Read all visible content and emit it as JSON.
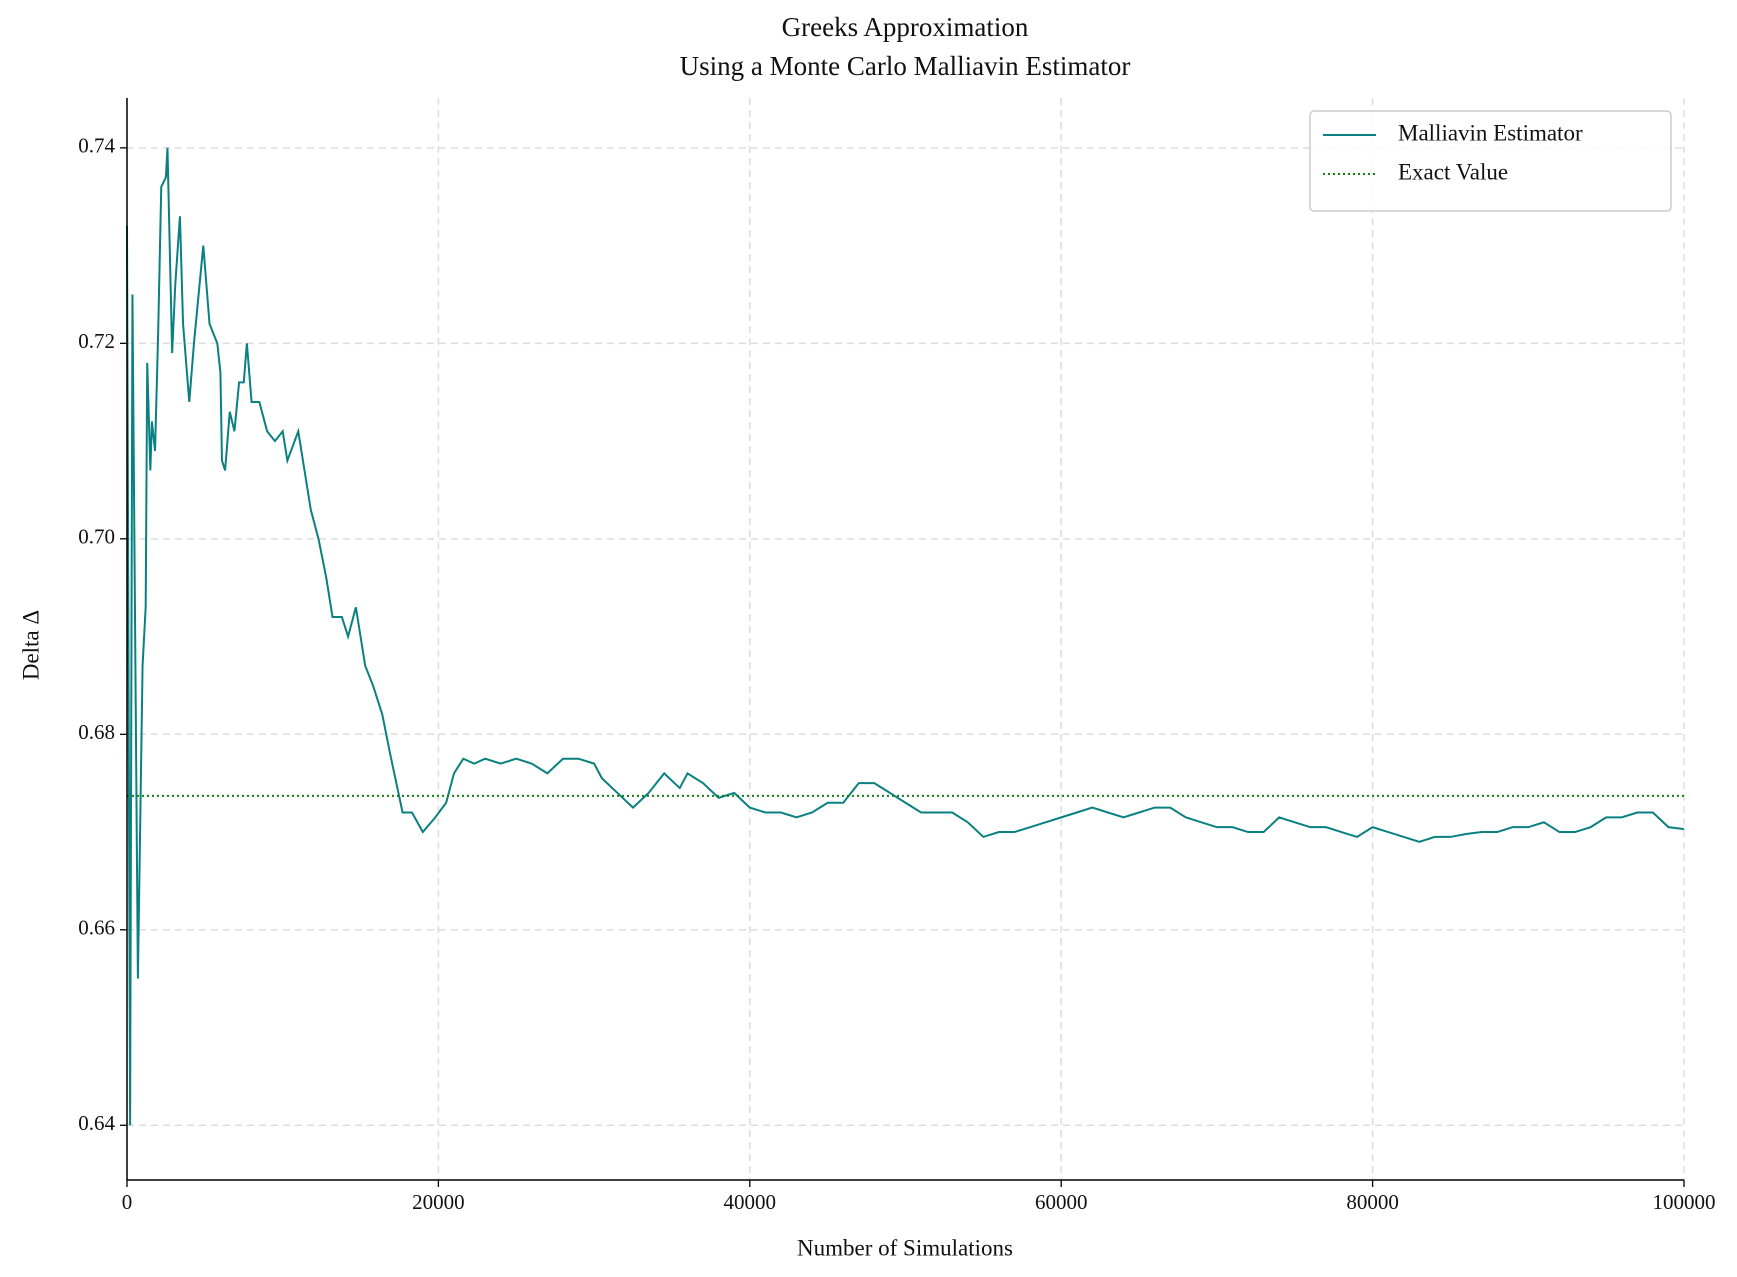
{
  "chart_data": {
    "type": "line",
    "title": [
      "Greeks Approximation",
      "Using a Monte Carlo Malliavin Estimator"
    ],
    "x_label": "Number of Simulations",
    "y_label": "Delta Δ",
    "xlim": [
      0,
      100000
    ],
    "ylim": [
      0.6344,
      0.7451
    ],
    "xticks": [
      0,
      20000,
      40000,
      60000,
      80000,
      100000
    ],
    "yticks": [
      0.64,
      0.66,
      0.68,
      {
        "value": 0.7,
        "label": "0.70"
      },
      0.72,
      0.74
    ],
    "grid": true,
    "legend": "upper right",
    "series": [
      {
        "name": "Malliavin Estimator",
        "color": "#0a8080",
        "x": [
          0,
          200,
          350,
          700,
          1000,
          1200,
          1300,
          1500,
          1600,
          1800,
          2000,
          2200,
          2500,
          2600,
          2900,
          3100,
          3400,
          3600,
          4000,
          4300,
          4900,
          5100,
          5300,
          5800,
          6000,
          6100,
          6300,
          6600,
          6900,
          7200,
          7500,
          7700,
          8000,
          8500,
          9000,
          9500,
          10000,
          10300,
          11000,
          11300,
          11800,
          12300,
          12800,
          13200,
          13800,
          14200,
          14700,
          15300,
          15800,
          16400,
          16900,
          17300,
          17700,
          18300,
          19000,
          19800,
          20500,
          21000,
          21600,
          22300,
          23000,
          24000,
          25000,
          26000,
          27000,
          28000,
          29000,
          30000,
          30500,
          31500,
          32500,
          33500,
          34500,
          35500,
          36000,
          37000,
          38000,
          39000,
          40000,
          41000,
          42000,
          43000,
          44000,
          45000,
          46000,
          47000,
          48000,
          49000,
          50000,
          51000,
          52000,
          53000,
          54000,
          55000,
          56000,
          57000,
          58000,
          59000,
          60000,
          61000,
          62000,
          63000,
          64000,
          65000,
          66000,
          67000,
          68000,
          69000,
          70000,
          71000,
          72000,
          73000,
          74000,
          75000,
          76000,
          77000,
          78000,
          79000,
          80000,
          81000,
          82000,
          83000,
          84000,
          85000,
          86000,
          87000,
          88000,
          89000,
          90000,
          91000,
          92000,
          93000,
          94000,
          95000,
          96000,
          97000,
          98000,
          99000,
          100000
        ],
        "values": [
          0.732,
          0.64,
          0.725,
          0.655,
          0.687,
          0.693,
          0.718,
          0.707,
          0.712,
          0.709,
          0.721,
          0.736,
          0.737,
          0.74,
          0.719,
          0.726,
          0.733,
          0.722,
          0.714,
          0.72,
          0.73,
          0.726,
          0.722,
          0.72,
          0.717,
          0.708,
          0.707,
          0.713,
          0.711,
          0.716,
          0.716,
          0.72,
          0.714,
          0.714,
          0.711,
          0.71,
          0.711,
          0.708,
          0.711,
          0.708,
          0.703,
          0.7,
          0.696,
          0.692,
          0.692,
          0.69,
          0.693,
          0.687,
          0.685,
          0.682,
          0.678,
          0.675,
          0.672,
          0.672,
          0.67,
          0.6715,
          0.673,
          0.676,
          0.6775,
          0.677,
          0.6775,
          0.677,
          0.6775,
          0.677,
          0.676,
          0.6775,
          0.6775,
          0.677,
          0.6755,
          0.674,
          0.6725,
          0.674,
          0.676,
          0.6745,
          0.676,
          0.675,
          0.6735,
          0.674,
          0.6725,
          0.672,
          0.672,
          0.6715,
          0.672,
          0.673,
          0.673,
          0.675,
          0.675,
          0.674,
          0.673,
          0.672,
          0.672,
          0.672,
          0.671,
          0.6695,
          0.67,
          0.67,
          0.6705,
          0.671,
          0.6715,
          0.672,
          0.6725,
          0.672,
          0.6715,
          0.672,
          0.6725,
          0.6725,
          0.6715,
          0.671,
          0.6705,
          0.6705,
          0.67,
          0.67,
          0.6715,
          0.671,
          0.6705,
          0.6705,
          0.67,
          0.6695,
          0.6705,
          0.67,
          0.6695,
          0.669,
          0.6695,
          0.6695,
          0.6698,
          0.67,
          0.67,
          0.6705,
          0.6705,
          0.671,
          0.67,
          0.67,
          0.6705,
          0.6715,
          0.6715,
          0.672,
          0.672,
          0.6705,
          0.6703
        ]
      }
    ],
    "reference_line": {
      "name": "Exact Value",
      "color": "#108010",
      "value": 0.6737
    }
  }
}
